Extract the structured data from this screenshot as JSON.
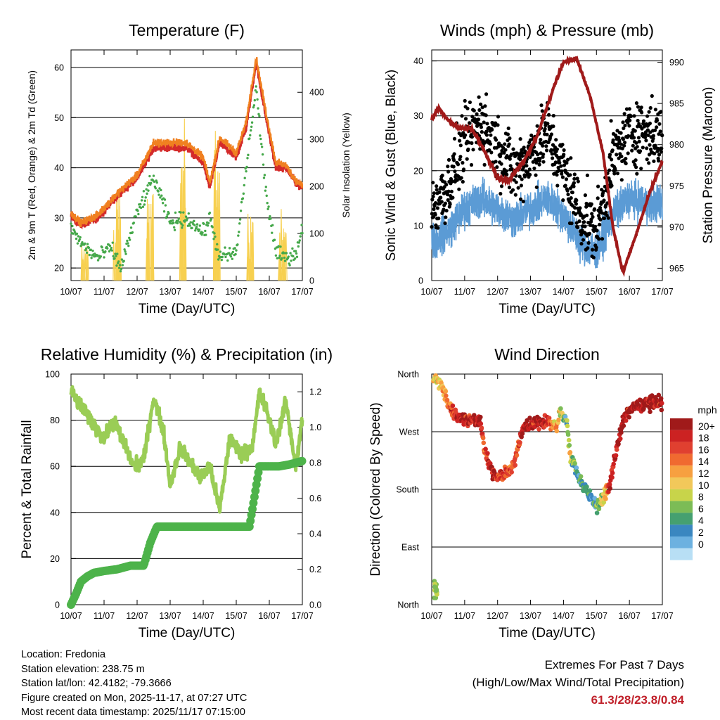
{
  "chart_data": [
    {
      "type": "line",
      "title": "Temperature (F)",
      "xlabel": "Time (Day/UTC)",
      "ylabel": "2m & 9m T (Red, Orange) & 2m Td (Green)",
      "y2label": "Solar Insolation (Yellow)",
      "ylim": [
        17.5,
        63.5
      ],
      "y2lim": [
        0,
        490
      ],
      "xlim": [
        0,
        7
      ],
      "x_ticks": [
        "10/07",
        "11/07",
        "12/07",
        "13/07",
        "14/07",
        "15/07",
        "16/07",
        "17/07"
      ],
      "y_ticks": [
        20,
        30,
        40,
        50,
        60
      ],
      "y2_ticks": [
        0,
        100,
        200,
        300,
        400
      ],
      "x": [
        0,
        0.3,
        0.8,
        1.2,
        1.5,
        2,
        2.5,
        3,
        3.5,
        4,
        4.2,
        4.5,
        5,
        5.3,
        5.6,
        5.9,
        6.2,
        6.5,
        6.8,
        7
      ],
      "series": [
        {
          "name": "2m T",
          "color": "#d42a2a",
          "values": [
            30.5,
            28.5,
            30,
            33,
            35,
            38,
            44,
            44,
            44,
            41,
            36,
            45,
            42,
            48,
            61,
            50,
            40,
            40,
            37,
            36
          ]
        },
        {
          "name": "9m T",
          "color": "#f08020",
          "values": [
            31,
            29,
            30.5,
            33.5,
            35.5,
            38.5,
            45,
            45,
            45,
            42,
            37,
            46,
            43,
            49,
            62,
            51,
            41,
            40.5,
            37.5,
            36.5
          ]
        },
        {
          "name": "2m Td",
          "color": "#45a84a",
          "values": [
            28,
            25,
            22,
            24,
            20,
            31,
            38,
            29,
            30,
            27,
            30,
            22,
            23,
            40,
            56,
            35,
            23,
            22,
            23,
            28
          ]
        }
      ],
      "insolation": {
        "name": "Solar Insolation",
        "color": "#f7d050",
        "days": [
          0.4,
          1.4,
          2.4,
          3.4,
          4.4,
          5.4,
          6.4
        ],
        "peaks": [
          120,
          330,
          260,
          450,
          460,
          210,
          170
        ]
      }
    },
    {
      "type": "scatter",
      "title": "Winds (mph) & Pressure (mb)",
      "xlabel": "Time (Day/UTC)",
      "ylabel": "Sonic Wind & Gust (Blue, Black)",
      "y2label": "Station Pressure (Maroon)",
      "ylim": [
        0,
        42
      ],
      "y2lim": [
        963.5,
        991.5
      ],
      "xlim": [
        0,
        7
      ],
      "x_ticks": [
        "10/07",
        "11/07",
        "12/07",
        "13/07",
        "14/07",
        "15/07",
        "16/07",
        "17/07"
      ],
      "y_ticks": [
        0,
        10,
        20,
        30,
        40
      ],
      "y2_ticks": [
        965,
        970,
        975,
        980,
        985,
        990
      ],
      "wind_x": [
        0,
        0.5,
        1,
        1.5,
        2,
        2.5,
        3,
        3.5,
        4,
        4.5,
        5,
        5.5,
        6,
        6.5,
        7
      ],
      "wind_mean": [
        7,
        9,
        13,
        15,
        13,
        11,
        13,
        15,
        12,
        7,
        5,
        12,
        15,
        14,
        14
      ],
      "gust_mean": [
        13,
        17,
        25,
        29,
        24,
        20,
        23,
        27,
        20,
        12,
        9,
        22,
        27,
        27,
        26
      ],
      "pressure": {
        "color": "#a01a1a",
        "x": [
          0,
          0.2,
          0.5,
          0.8,
          1.2,
          1.5,
          2,
          2.3,
          2.8,
          3.2,
          3.7,
          4,
          4.4,
          4.8,
          5.2,
          5.5,
          5.8,
          6.2,
          6.6,
          7
        ],
        "values": [
          983,
          984.5,
          983,
          982,
          982,
          980,
          976,
          975.5,
          978,
          981,
          987,
          990,
          990.5,
          986,
          979,
          970,
          964.5,
          969,
          974,
          978
        ]
      },
      "gust_color": "#000000",
      "wind_color": "#5b9bd5"
    },
    {
      "type": "line",
      "title": "Relative Humidity (%) & Precipitation (in)",
      "xlabel": "Time (Day/UTC)",
      "ylabel": "Percent & Total Rainfall",
      "ylim": [
        0,
        100
      ],
      "y2lim": [
        0,
        1.3
      ],
      "xlim": [
        0,
        7
      ],
      "x_ticks": [
        "10/07",
        "11/07",
        "12/07",
        "13/07",
        "14/07",
        "15/07",
        "16/07",
        "17/07"
      ],
      "y_ticks": [
        0,
        20,
        40,
        60,
        80,
        100
      ],
      "y2_ticks": [
        "0.0",
        "0.2",
        "0.4",
        "0.6",
        "0.8",
        "1.0",
        "1.2"
      ],
      "series": [
        {
          "name": "Relative Humidity",
          "color": "#9acd56",
          "x": [
            0,
            0.2,
            0.5,
            0.8,
            1,
            1.3,
            1.6,
            1.9,
            2.2,
            2.5,
            2.8,
            3,
            3.3,
            3.6,
            3.9,
            4.2,
            4.5,
            4.8,
            5.2,
            5.5,
            5.7,
            5.9,
            6.2,
            6.5,
            6.8,
            7
          ],
          "values": [
            93,
            88,
            82,
            76,
            72,
            80,
            70,
            60,
            63,
            90,
            75,
            52,
            68,
            62,
            55,
            60,
            41,
            72,
            65,
            69,
            92,
            85,
            70,
            88,
            60,
            80
          ]
        },
        {
          "name": "Total Rainfall",
          "color": "#4db34a",
          "x": [
            0,
            0.15,
            0.3,
            0.5,
            0.7,
            1,
            1.4,
            1.8,
            2.2,
            2.4,
            2.6,
            2.9,
            3.3,
            4,
            4.8,
            5.4,
            5.5,
            5.7,
            6,
            6.3,
            6.6,
            7
          ],
          "values": [
            0,
            0.06,
            0.13,
            0.16,
            0.18,
            0.19,
            0.2,
            0.22,
            0.22,
            0.35,
            0.44,
            0.44,
            0.44,
            0.44,
            0.44,
            0.44,
            0.55,
            0.78,
            0.78,
            0.78,
            0.79,
            0.81
          ]
        }
      ]
    },
    {
      "type": "scatter",
      "title": "Wind Direction",
      "xlabel": "Time (Day/UTC)",
      "ylabel": "Direction (Colored By Speed)",
      "xlim": [
        0,
        7
      ],
      "ylim": [
        0,
        360
      ],
      "x_ticks": [
        "10/07",
        "11/07",
        "12/07",
        "13/07",
        "14/07",
        "15/07",
        "16/07",
        "17/07"
      ],
      "y_ticks": [
        {
          "label": "North",
          "deg": 360
        },
        {
          "label": "West",
          "deg": 270
        },
        {
          "label": "South",
          "deg": 180
        },
        {
          "label": "East",
          "deg": 90
        },
        {
          "label": "North",
          "deg": 0
        }
      ],
      "direction_x": [
        0.1,
        0.3,
        0.6,
        0.9,
        1.2,
        1.5,
        1.6,
        1.8,
        2.0,
        2.3,
        2.5,
        2.8,
        3.2,
        3.5,
        3.8,
        3.9,
        4.1,
        4.2,
        4.4,
        4.6,
        4.8,
        5.0,
        5.2,
        5.4,
        5.6,
        5.8,
        6.0,
        6.3,
        6.6,
        7.0
      ],
      "direction_deg": [
        355,
        340,
        305,
        290,
        290,
        280,
        240,
        210,
        200,
        205,
        220,
        280,
        285,
        285,
        280,
        300,
        290,
        230,
        210,
        185,
        170,
        155,
        165,
        185,
        240,
        285,
        305,
        310,
        315,
        315
      ],
      "speeds": [
        10,
        11,
        16,
        20,
        18,
        20,
        14,
        20,
        18,
        16,
        15,
        19,
        20,
        18,
        12,
        9,
        6,
        10,
        4,
        6,
        4,
        5,
        10,
        18,
        20,
        20,
        20,
        20,
        20,
        19
      ],
      "legend": {
        "title": "mph",
        "labels": [
          "20+",
          "18",
          "16",
          "14",
          "12",
          "10",
          "8",
          "6",
          "4",
          "2",
          "0"
        ],
        "colors": [
          "#a01a1a",
          "#cc2222",
          "#e04030",
          "#f06a30",
          "#f7a040",
          "#f2c85a",
          "#c8d44a",
          "#7cbc56",
          "#45a070",
          "#3a87c0",
          "#6cb1e0",
          "#b8dff5"
        ]
      }
    }
  ],
  "info": {
    "location": "Location: Fredonia",
    "elevation": "Station elevation: 238.75 m",
    "latlon": "Station lat/lon: 42.4182; -79.3666",
    "created": "Figure created on Mon, 2025-11-17, at 07:27 UTC",
    "recent": "Most recent data timestamp: 2025/11/17 07:15:00"
  },
  "extremes": {
    "title": "Extremes For Past 7 Days",
    "subtitle": "(High/Low/Max Wind/Total Precipitation)",
    "values": "61.3/28/23.8/0.84",
    "values_color": "#c0202a"
  }
}
